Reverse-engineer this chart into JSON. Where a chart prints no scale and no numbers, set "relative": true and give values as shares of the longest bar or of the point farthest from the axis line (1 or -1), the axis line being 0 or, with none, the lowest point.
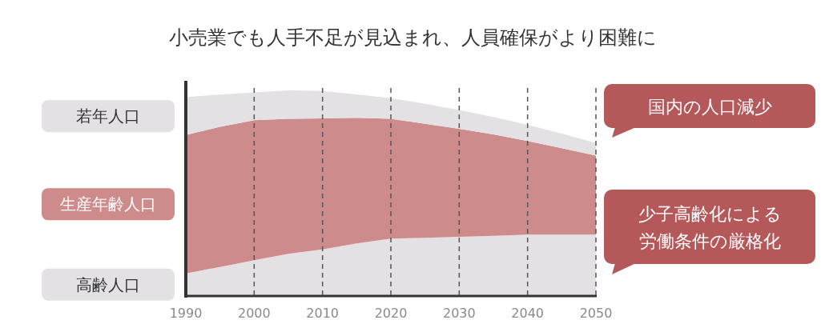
{
  "chart_data": {
    "type": "area",
    "title": "小売業でも人手不足が見込まれ、人員確保がより困難に",
    "stacked": true,
    "relative": true,
    "x": [
      1990,
      1995,
      2000,
      2005,
      2010,
      2015,
      2020,
      2025,
      2030,
      2035,
      2040,
      2045,
      2050
    ],
    "xlim": [
      1990,
      2050
    ],
    "xticks": [
      1990,
      2000,
      2010,
      2020,
      2030,
      2040,
      2050
    ],
    "grid": "x",
    "line_style": "dashed",
    "legend": "left",
    "series": [
      {
        "name": "高齢人口",
        "color": "#e3e1e4",
        "values": [
          0.11,
          0.141,
          0.174,
          0.205,
          0.227,
          0.256,
          0.279,
          0.283,
          0.288,
          0.293,
          0.299,
          0.299,
          0.299
        ]
      },
      {
        "name": "生産年齢人口",
        "color": "#cd8b8c",
        "values": [
          0.673,
          0.682,
          0.681,
          0.657,
          0.637,
          0.611,
          0.583,
          0.555,
          0.525,
          0.493,
          0.455,
          0.42,
          0.384
        ]
      },
      {
        "name": "若年人口",
        "color": "#e3e1e4",
        "values": [
          0.184,
          0.157,
          0.135,
          0.138,
          0.133,
          0.114,
          0.1,
          0.097,
          0.092,
          0.085,
          0.079,
          0.071,
          0.061
        ]
      }
    ],
    "annotations": [
      "国内の人口減少",
      "少子高齢化による",
      "労働条件の厳格化"
    ]
  }
}
